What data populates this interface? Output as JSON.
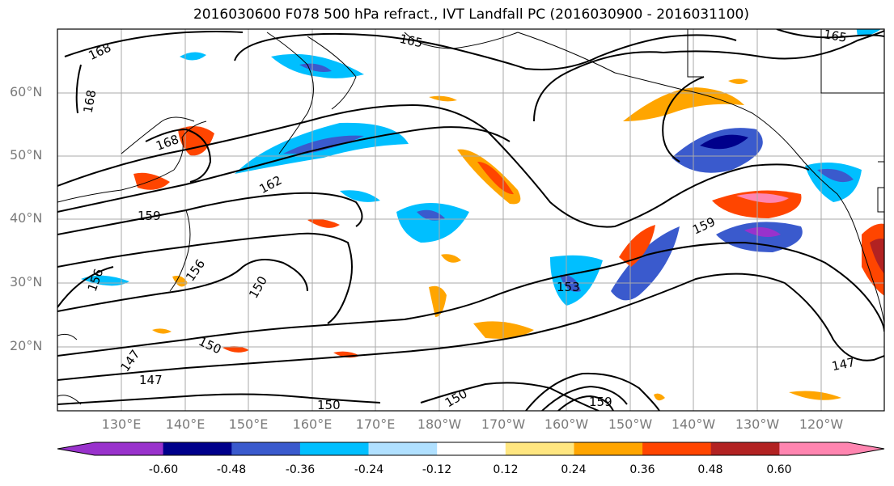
{
  "title": "2016030600 F078 500 hPa refract., IVT Landfall PC (2016030900 - 2016031100)",
  "lat_labels": [
    "60°N",
    "50°N",
    "40°N",
    "30°N",
    "20°N"
  ],
  "lon_labels": [
    "130°E",
    "140°E",
    "150°E",
    "160°E",
    "170°E",
    "180°W",
    "170°W",
    "160°W",
    "150°W",
    "140°W",
    "130°W",
    "120°W"
  ],
  "contour_labels": [
    "168",
    "165",
    "168",
    "168",
    "162",
    "159",
    "156",
    "156",
    "150",
    "153",
    "159",
    "147",
    "150",
    "147",
    "147",
    "150",
    "150",
    "159",
    "165"
  ],
  "colorbar": {
    "tick_labels": [
      "-0.60",
      "-0.48",
      "-0.36",
      "-0.24",
      "-0.12",
      "0.12",
      "0.24",
      "0.36",
      "0.48",
      "0.60"
    ],
    "colors": [
      "#9932cc",
      "#00008b",
      "#3a5acd",
      "#00bfff",
      "#b0e0ff",
      "#ffffff",
      "#ffe680",
      "#ffa500",
      "#ff4500",
      "#b22222",
      "#ff85b0"
    ]
  }
}
